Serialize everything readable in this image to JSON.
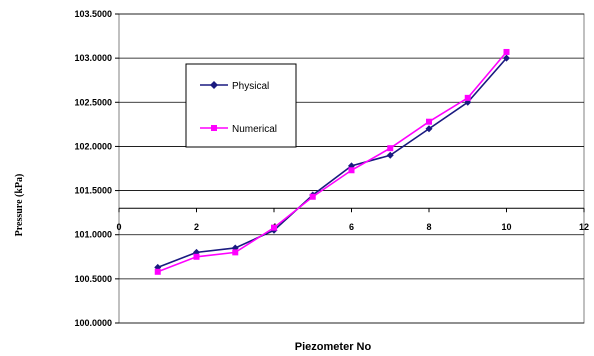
{
  "chart_data": {
    "type": "line",
    "xlabel": "Piezometer No",
    "ylabel": "Pressure (kPa)",
    "xlim": [
      0,
      12
    ],
    "ylim": [
      100.0,
      103.5
    ],
    "x_ticks": [
      "0",
      "2",
      "4",
      "6",
      "8",
      "10",
      "12"
    ],
    "y_ticks": [
      "100.0000",
      "100.5000",
      "101.0000",
      "101.5000",
      "102.0000",
      "102.5000",
      "103.0000",
      "103.5000"
    ],
    "x_axis_crossing_y": 101.3,
    "grid": "horizontal",
    "legend_position": "upper-left",
    "x": [
      1,
      2,
      3,
      4,
      5,
      6,
      7,
      8,
      9,
      10
    ],
    "series": [
      {
        "name": "Physical",
        "color": "#1a1a80",
        "marker": "diamond",
        "values": [
          100.63,
          100.8,
          100.85,
          101.05,
          101.45,
          101.78,
          101.9,
          102.2,
          102.5,
          103.0
        ]
      },
      {
        "name": "Numerical",
        "color": "#ff00ff",
        "marker": "square",
        "values": [
          100.58,
          100.75,
          100.8,
          101.08,
          101.43,
          101.73,
          101.98,
          102.28,
          102.55,
          103.07
        ]
      }
    ]
  }
}
